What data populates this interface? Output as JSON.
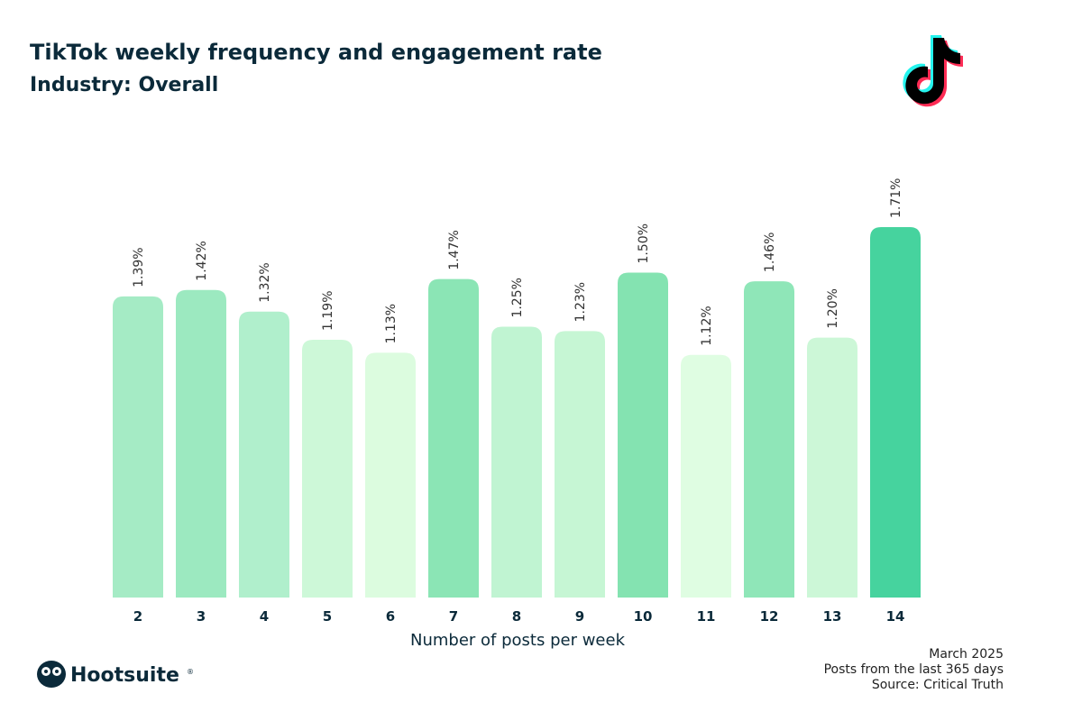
{
  "chart_data": {
    "type": "bar",
    "title": "TikTok weekly frequency and engagement rate",
    "subtitle": "Industry: Overall",
    "x_label": "Number of posts per week",
    "categories": [
      "2",
      "3",
      "4",
      "5",
      "6",
      "7",
      "8",
      "9",
      "10",
      "11",
      "12",
      "13",
      "14"
    ],
    "values": [
      1.39,
      1.42,
      1.32,
      1.19,
      1.13,
      1.47,
      1.25,
      1.23,
      1.5,
      1.12,
      1.46,
      1.2,
      1.71
    ],
    "value_labels": [
      "1.39%",
      "1.42%",
      "1.32%",
      "1.19%",
      "1.13%",
      "1.47%",
      "1.25%",
      "1.23%",
      "1.50%",
      "1.12%",
      "1.46%",
      "1.20%",
      "1.71%"
    ],
    "colors": [
      "#a5ebc5",
      "#9ce9c0",
      "#b0efcc",
      "#cdf8d8",
      "#dcfcdf",
      "#8be5b5",
      "#c0f4d2",
      "#c6f6d4",
      "#84e3b1",
      "#dffde2",
      "#8fe6b8",
      "#ccf7d7",
      "#46d39e"
    ],
    "notes": [
      "March 2025",
      "Posts from the last 365 days",
      "Source: Critical Truth"
    ]
  },
  "branding": {
    "name": "Hootsuite",
    "mark": "®"
  }
}
